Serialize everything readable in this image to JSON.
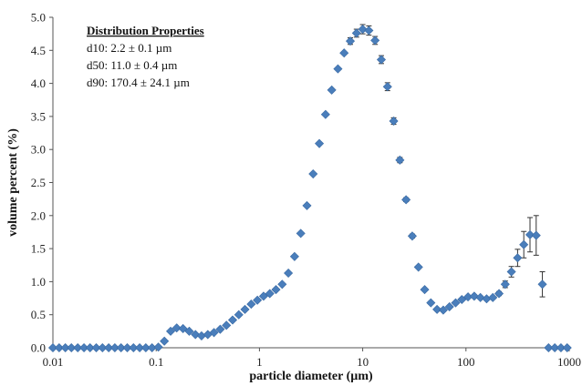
{
  "chart_data": {
    "type": "scatter",
    "x_scale": "log",
    "xlim": [
      0.01,
      1000
    ],
    "ylim": [
      0,
      5.0
    ],
    "xlabel": "particle diameter (µm)",
    "ylabel": "volume percent (%)",
    "x_ticks": [
      "0.01",
      "0.1",
      "1",
      "10",
      "100",
      "1000"
    ],
    "y_ticks": [
      "0.0",
      "0.5",
      "1.0",
      "1.5",
      "2.0",
      "2.5",
      "3.0",
      "3.5",
      "4.0",
      "4.5",
      "5.0"
    ],
    "grid": false,
    "marker": "diamond",
    "marker_color": "#4a7ebb",
    "annotation": {
      "heading": "Distribution Properties",
      "lines": [
        "d10: 2.2 ± 0.1 µm",
        "d50: 11.0 ± 0.4 µm",
        "d90: 170.4 ± 24.1 µm"
      ]
    },
    "series": [
      {
        "x": [
          0.01,
          0.0115,
          0.0132,
          0.0151,
          0.0174,
          0.02,
          0.0229,
          0.0263,
          0.0302,
          0.0347,
          0.0398,
          0.0457,
          0.0525,
          0.0603,
          0.0692,
          0.0794,
          0.0912,
          0.105,
          0.12,
          0.138,
          0.158,
          0.182,
          0.209,
          0.24,
          0.275,
          0.316,
          0.363,
          0.417,
          0.479,
          0.55,
          0.631,
          0.724,
          0.832,
          0.955,
          1.096,
          1.259,
          1.445,
          1.66,
          1.905,
          2.188,
          2.512,
          2.884,
          3.311,
          3.802,
          4.365,
          5.012,
          5.754,
          6.607,
          7.586,
          8.71,
          10.0,
          11.48,
          13.18,
          15.14,
          17.38,
          19.95,
          22.91,
          26.3,
          30.2,
          34.67,
          39.81,
          45.71,
          52.48,
          60.26,
          69.18,
          79.43,
          91.2,
          104.7,
          120.2,
          138.0,
          158.5,
          182.0,
          208.9,
          239.9,
          275.4,
          316.2,
          363.1,
          416.9,
          478.6,
          549.5,
          631.0,
          724.4,
          831.8,
          955.0
        ],
        "y": [
          0,
          0,
          0,
          0,
          0,
          0,
          0,
          0,
          0,
          0,
          0,
          0,
          0,
          0,
          0,
          0,
          0,
          0.01,
          0.1,
          0.25,
          0.3,
          0.29,
          0.25,
          0.2,
          0.18,
          0.2,
          0.23,
          0.28,
          0.34,
          0.42,
          0.5,
          0.58,
          0.66,
          0.72,
          0.78,
          0.82,
          0.88,
          0.96,
          1.13,
          1.38,
          1.73,
          2.15,
          2.63,
          3.09,
          3.53,
          3.9,
          4.22,
          4.46,
          4.64,
          4.76,
          4.82,
          4.8,
          4.65,
          4.36,
          3.95,
          3.43,
          2.84,
          2.24,
          1.69,
          1.22,
          0.88,
          0.68,
          0.58,
          0.57,
          0.62,
          0.68,
          0.73,
          0.77,
          0.78,
          0.76,
          0.74,
          0.76,
          0.82,
          0.96,
          1.15,
          1.36,
          1.56,
          1.71,
          1.7,
          0.96,
          0,
          0,
          0,
          0
        ],
        "y_err": [
          0,
          0,
          0,
          0,
          0,
          0,
          0,
          0,
          0,
          0,
          0,
          0,
          0,
          0,
          0,
          0,
          0,
          0,
          0,
          0,
          0,
          0,
          0,
          0,
          0,
          0,
          0,
          0,
          0,
          0,
          0,
          0,
          0,
          0,
          0,
          0,
          0,
          0,
          0,
          0,
          0,
          0,
          0,
          0,
          0,
          0,
          0,
          0,
          0.05,
          0.06,
          0.07,
          0.07,
          0.06,
          0.06,
          0.06,
          0.05,
          0.04,
          0.03,
          0.03,
          0.02,
          0.02,
          0.02,
          0.02,
          0.02,
          0.02,
          0.02,
          0.02,
          0.02,
          0.02,
          0.02,
          0.02,
          0.02,
          0.03,
          0.05,
          0.08,
          0.13,
          0.2,
          0.26,
          0.3,
          0.19,
          0,
          0,
          0,
          0
        ]
      }
    ]
  }
}
